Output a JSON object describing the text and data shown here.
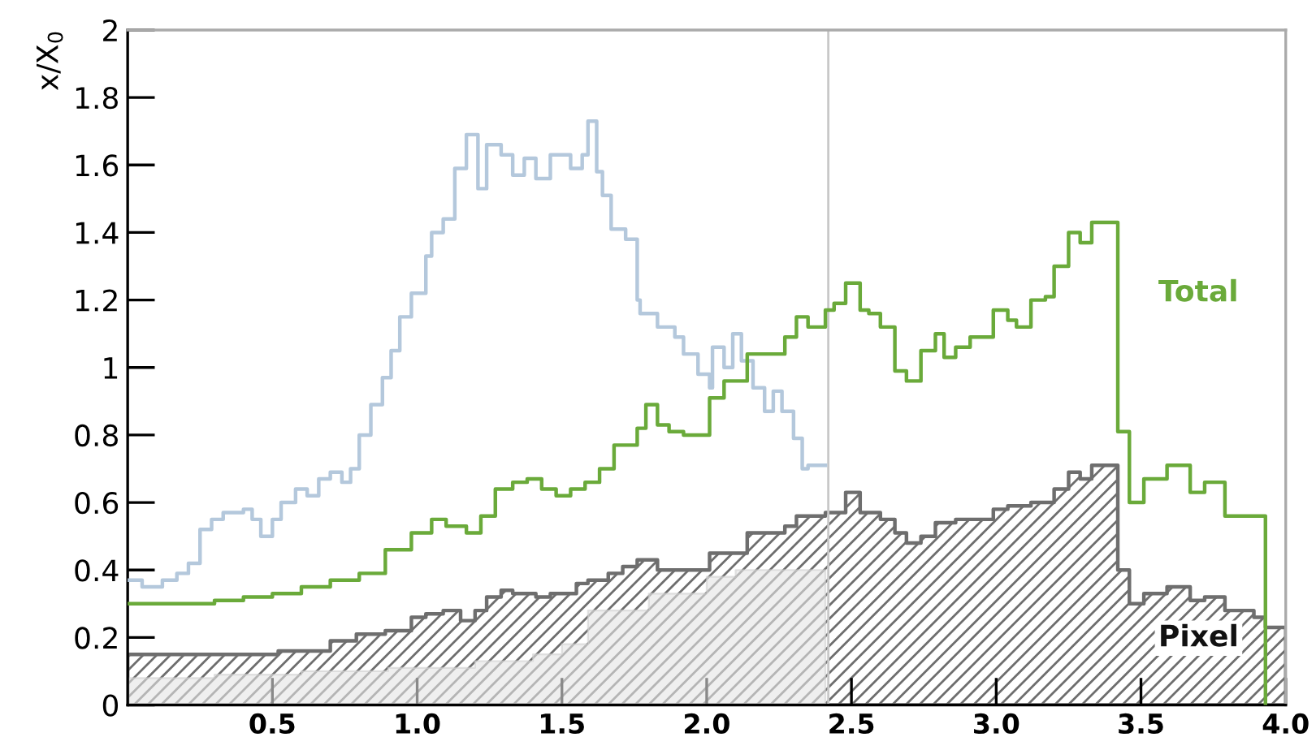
{
  "chart_data": {
    "type": "step",
    "ylabel": "x/X$_{0}$",
    "xlim": [
      0,
      4.0
    ],
    "xticks": [
      0.5,
      {
        "value": 1,
        "label": "1.0"
      },
      1.5,
      {
        "value": 2,
        "label": "2.0"
      },
      2.5,
      {
        "value": 3,
        "label": "3.0"
      },
      3.5,
      {
        "value": 4,
        "label": "4.0"
      }
    ],
    "ylim": [
      0,
      2
    ],
    "yticks": [
      0,
      0.2,
      0.4,
      0.6,
      0.8,
      1,
      1.2,
      1.4,
      1.6,
      1.8,
      2
    ],
    "grid": false,
    "legend": false,
    "marker": "none",
    "line_style": "solid",
    "ref_lines": [
      {
        "axis": "x",
        "value": 2.42,
        "label": null,
        "color": "#c8c8c8"
      }
    ],
    "series": [
      {
        "type": "area",
        "color": "#e4e4e4",
        "x": [
          0,
          0.3,
          0.6,
          0.9,
          1.2,
          1.4,
          1.5,
          1.59,
          1.8,
          2.0,
          2.1,
          2.41
        ],
        "values": [
          0.08,
          0.09,
          0.1,
          0.11,
          0.13,
          0.15,
          0.18,
          0.28,
          0.33,
          0.38,
          0.4,
          0.4
        ]
      },
      {
        "type": "area",
        "name": "Pixel",
        "color": "#6e6e6e",
        "x": [
          0,
          0.28,
          0.52,
          0.7,
          0.79,
          0.89,
          0.98,
          1.03,
          1.09,
          1.15,
          1.2,
          1.24,
          1.29,
          1.33,
          1.41,
          1.46,
          1.5,
          1.55,
          1.59,
          1.66,
          1.71,
          1.76,
          1.83,
          1.92,
          2.01,
          2.14,
          2.27,
          2.31,
          2.41,
          2.48,
          2.53,
          2.6,
          2.65,
          2.69,
          2.74,
          2.79,
          2.86,
          2.91,
          2.99,
          3.04,
          3.12,
          3.2,
          3.25,
          3.29,
          3.33,
          3.42,
          3.46,
          3.51,
          3.59,
          3.67,
          3.72,
          3.79,
          3.89,
          3.93,
          4.0
        ],
        "values": [
          0.15,
          0.15,
          0.16,
          0.19,
          0.21,
          0.22,
          0.26,
          0.27,
          0.28,
          0.25,
          0.28,
          0.32,
          0.34,
          0.33,
          0.32,
          0.33,
          0.33,
          0.36,
          0.37,
          0.39,
          0.41,
          0.43,
          0.4,
          0.4,
          0.45,
          0.51,
          0.53,
          0.56,
          0.57,
          0.63,
          0.57,
          0.55,
          0.51,
          0.48,
          0.5,
          0.54,
          0.55,
          0.55,
          0.58,
          0.59,
          0.6,
          0.64,
          0.69,
          0.67,
          0.71,
          0.4,
          0.3,
          0.33,
          0.35,
          0.31,
          0.32,
          0.28,
          0.26,
          0.23,
          0.23
        ]
      },
      {
        "color": "#b4c8dc",
        "x": [
          0,
          0.05,
          0.12,
          0.17,
          0.21,
          0.25,
          0.29,
          0.33,
          0.4,
          0.43,
          0.46,
          0.5,
          0.53,
          0.58,
          0.62,
          0.66,
          0.7,
          0.74,
          0.77,
          0.8,
          0.84,
          0.88,
          0.91,
          0.94,
          0.98,
          1.03,
          1.05,
          1.09,
          1.13,
          1.17,
          1.21,
          1.24,
          1.29,
          1.33,
          1.37,
          1.41,
          1.46,
          1.53,
          1.57,
          1.59,
          1.62,
          1.64,
          1.67,
          1.72,
          1.76,
          1.77,
          1.83,
          1.89,
          1.92,
          1.97,
          2.01,
          2.02,
          2.06,
          2.09,
          2.12,
          2.16,
          2.2,
          2.23,
          2.26,
          2.3,
          2.33,
          2.35,
          2.41
        ],
        "values": [
          0.37,
          0.35,
          0.37,
          0.39,
          0.42,
          0.52,
          0.55,
          0.57,
          0.58,
          0.55,
          0.5,
          0.55,
          0.6,
          0.64,
          0.62,
          0.67,
          0.69,
          0.66,
          0.7,
          0.8,
          0.89,
          0.97,
          1.05,
          1.15,
          1.22,
          1.33,
          1.4,
          1.44,
          1.59,
          1.69,
          1.53,
          1.66,
          1.63,
          1.57,
          1.62,
          1.56,
          1.63,
          1.59,
          1.63,
          1.73,
          1.58,
          1.51,
          1.41,
          1.38,
          1.2,
          1.16,
          1.12,
          1.09,
          1.04,
          0.98,
          0.94,
          1.06,
          1.0,
          1.1,
          1.02,
          0.94,
          0.87,
          0.93,
          0.87,
          0.79,
          0.7,
          0.71,
          0.71
        ]
      },
      {
        "name": "Total",
        "color": "#6aaa3a",
        "x": [
          0,
          0.3,
          0.4,
          0.5,
          0.6,
          0.7,
          0.8,
          0.89,
          0.98,
          1.05,
          1.1,
          1.17,
          1.22,
          1.27,
          1.33,
          1.38,
          1.43,
          1.48,
          1.53,
          1.58,
          1.63,
          1.68,
          1.76,
          1.79,
          1.83,
          1.87,
          1.92,
          2.01,
          2.06,
          2.14,
          2.27,
          2.31,
          2.35,
          2.41,
          2.44,
          2.48,
          2.53,
          2.56,
          2.6,
          2.65,
          2.69,
          2.74,
          2.79,
          2.82,
          2.86,
          2.91,
          2.99,
          3.04,
          3.07,
          3.12,
          3.17,
          3.2,
          3.25,
          3.29,
          3.33,
          3.42,
          3.46,
          3.51,
          3.59,
          3.67,
          3.72,
          3.79,
          3.89,
          3.93
        ],
        "values": [
          0.3,
          0.31,
          0.32,
          0.33,
          0.35,
          0.37,
          0.39,
          0.46,
          0.51,
          0.55,
          0.53,
          0.51,
          0.56,
          0.64,
          0.66,
          0.67,
          0.64,
          0.62,
          0.64,
          0.66,
          0.7,
          0.77,
          0.82,
          0.89,
          0.83,
          0.81,
          0.8,
          0.91,
          0.96,
          1.04,
          1.09,
          1.15,
          1.12,
          1.17,
          1.19,
          1.25,
          1.17,
          1.16,
          1.12,
          0.99,
          0.96,
          1.05,
          1.1,
          1.03,
          1.06,
          1.09,
          1.17,
          1.14,
          1.12,
          1.2,
          1.21,
          1.3,
          1.4,
          1.37,
          1.43,
          0.81,
          0.6,
          0.67,
          0.71,
          0.63,
          0.66,
          0.56,
          0.56,
          0
        ]
      }
    ]
  }
}
